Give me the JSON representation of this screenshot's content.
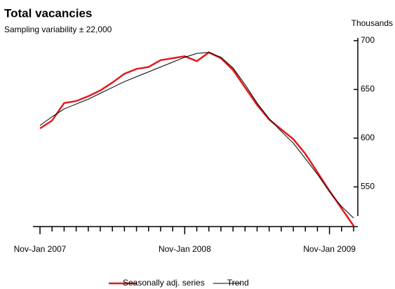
{
  "chart_data": {
    "type": "line",
    "title": "Total vacancies",
    "subtitle": "Sampling variability ± 22,000",
    "y_axis_label": "Thousands",
    "categories": [
      "Nov-Jan 2007",
      null,
      null,
      null,
      null,
      null,
      null,
      null,
      null,
      null,
      null,
      null,
      "Nov-Jan 2008",
      null,
      null,
      null,
      null,
      null,
      null,
      null,
      null,
      null,
      null,
      null,
      "Nov-Jan 2009",
      null,
      null
    ],
    "series": [
      {
        "name": "Seasonally adj. series",
        "color": "#e41a1c",
        "values": [
          610,
          618,
          636,
          638,
          643,
          649,
          657,
          666,
          671,
          673,
          680,
          682,
          684,
          679,
          688,
          682,
          670,
          652,
          634,
          619,
          609,
          599,
          584,
          565,
          546,
          528,
          510
        ]
      },
      {
        "name": "Trend",
        "color": "#000000",
        "values": [
          613,
          622,
          630,
          635,
          640,
          646,
          652,
          658,
          663,
          668,
          673,
          678,
          683,
          687,
          688,
          683,
          672,
          655,
          636,
          620,
          607,
          595,
          579,
          563,
          545,
          530,
          518
        ]
      }
    ],
    "ylim": [
      510,
      700
    ],
    "yticks": [
      550,
      600,
      650,
      700
    ],
    "y_axis_side": "right",
    "legend": "bottom"
  }
}
